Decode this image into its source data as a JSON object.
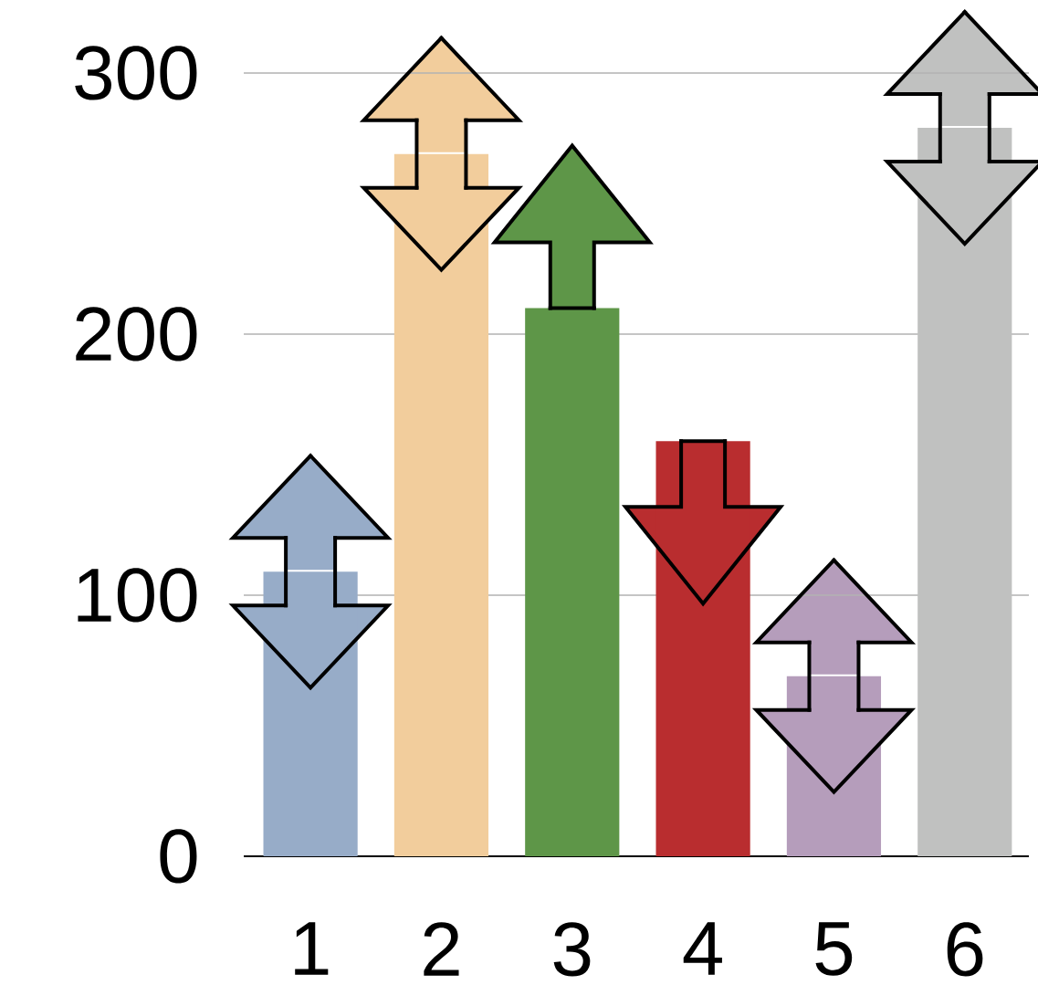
{
  "chart_data": {
    "type": "bar",
    "categories": [
      "1",
      "2",
      "3",
      "4",
      "5",
      "6"
    ],
    "values": [
      109,
      269,
      210,
      159,
      69,
      279
    ],
    "colors": [
      "#97acc8",
      "#f2cd9c",
      "#5e9648",
      "#b92d2f",
      "#b59dbb",
      "#c0c1c0"
    ],
    "ylim": [
      0,
      300
    ],
    "yticks": [
      0,
      100,
      200,
      300
    ],
    "grid": "y"
  }
}
